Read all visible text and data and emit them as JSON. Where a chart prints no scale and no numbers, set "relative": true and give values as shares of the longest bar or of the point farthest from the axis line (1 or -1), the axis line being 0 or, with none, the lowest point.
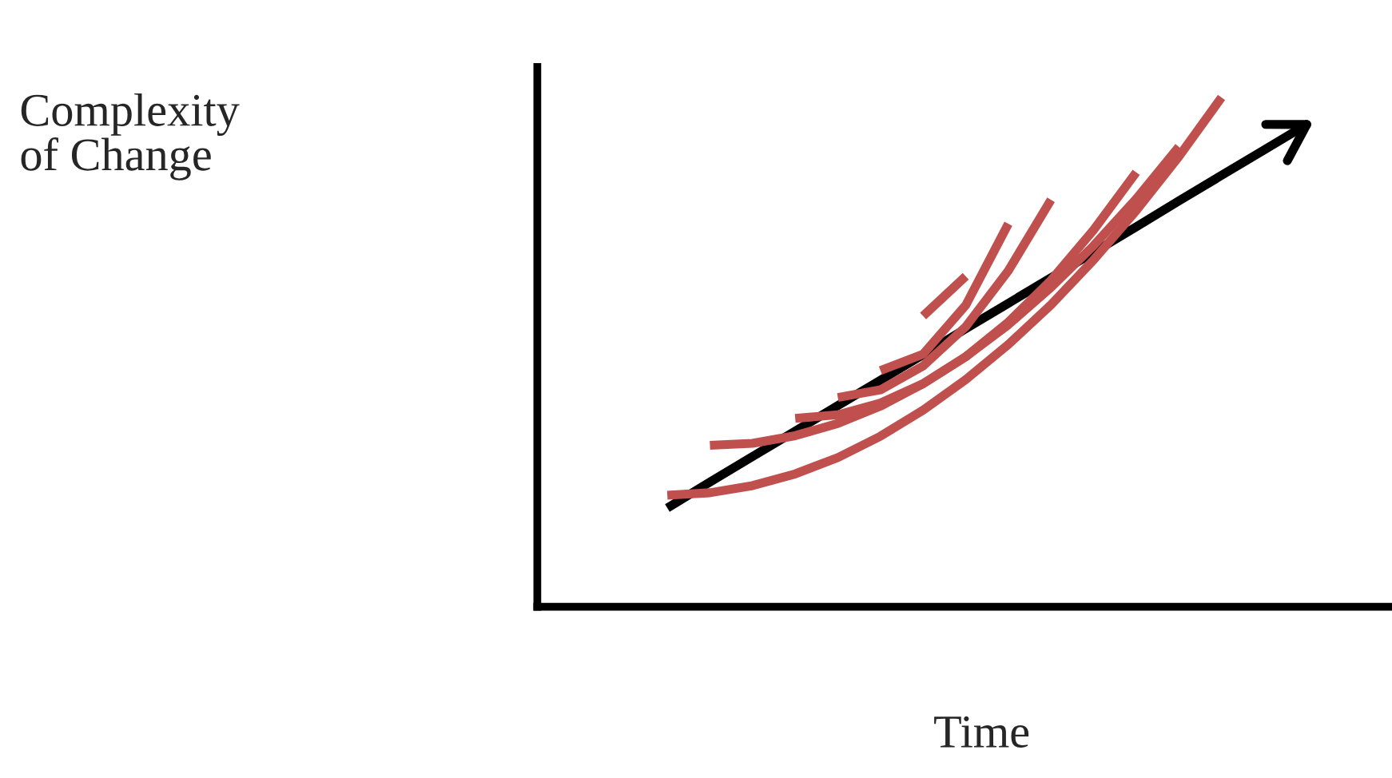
{
  "chart_data": {
    "type": "line",
    "relative": true,
    "xlabel": "Time",
    "annotations": [
      "Complexity\nof Change"
    ],
    "line_style": "solid",
    "categories": [
      null,
      null,
      null,
      null,
      null,
      null,
      null,
      null,
      null,
      null,
      null,
      null,
      null,
      null,
      null,
      null,
      null,
      null,
      null,
      null,
      null
    ],
    "series": [
      {
        "color": "#000000",
        "values": [
          null,
          null,
          null,
          0.194,
          0.245,
          0.295,
          0.345,
          0.395,
          0.445,
          0.495,
          0.546,
          0.596,
          0.646,
          0.696,
          0.746,
          0.797,
          0.847,
          0.897,
          0.947,
          null,
          null
        ]
      },
      {
        "color": "#c0504d",
        "values": [
          null,
          null,
          null,
          0.219,
          0.224,
          0.238,
          0.261,
          0.293,
          0.335,
          0.386,
          0.446,
          0.515,
          0.593,
          0.681,
          0.778,
          0.884,
          1.0,
          null,
          null,
          null,
          null
        ]
      },
      {
        "color": "#c0504d",
        "values": [
          null,
          null,
          null,
          null,
          0.317,
          0.321,
          0.336,
          0.36,
          0.394,
          0.438,
          0.491,
          0.554,
          0.627,
          0.709,
          0.801,
          0.903,
          null,
          null,
          null,
          null,
          null
        ]
      },
      {
        "color": "#c0504d",
        "values": [
          null,
          null,
          null,
          null,
          null,
          null,
          0.37,
          0.377,
          0.4,
          0.438,
          0.491,
          0.559,
          0.641,
          0.74,
          0.853,
          null,
          null,
          null,
          null,
          null,
          null
        ]
      },
      {
        "color": "#c0504d",
        "values": [
          null,
          null,
          null,
          null,
          null,
          null,
          null,
          0.411,
          0.426,
          0.473,
          0.55,
          0.66,
          0.799,
          null,
          null,
          null,
          null,
          null,
          null,
          null,
          null
        ]
      },
      {
        "color": "#c0504d",
        "values": [
          null,
          null,
          null,
          null,
          null,
          null,
          null,
          null,
          0.464,
          0.496,
          0.592,
          0.752,
          null,
          null,
          null,
          null,
          null,
          null,
          null,
          null,
          null
        ]
      },
      {
        "color": "#c0504d",
        "values": [
          null,
          null,
          null,
          null,
          null,
          null,
          null,
          null,
          null,
          0.571,
          0.649,
          null,
          null,
          null,
          null,
          null,
          null,
          null,
          null,
          null,
          null
        ]
      }
    ]
  }
}
